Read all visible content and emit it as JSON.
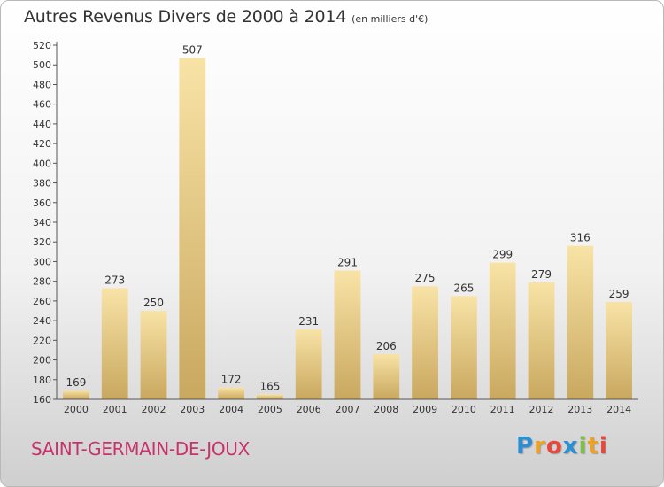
{
  "chart_data": {
    "type": "bar",
    "title": "Autres Revenus Divers de 2000 à 2014",
    "subtitle": "(en milliers d'€)",
    "categories": [
      "2000",
      "2001",
      "2002",
      "2003",
      "2004",
      "2005",
      "2006",
      "2007",
      "2008",
      "2009",
      "2010",
      "2011",
      "2012",
      "2013",
      "2014"
    ],
    "values": [
      169,
      273,
      250,
      507,
      172,
      165,
      231,
      291,
      206,
      275,
      265,
      299,
      279,
      316,
      259
    ],
    "ylim": [
      160,
      520
    ],
    "yticks": [
      160,
      180,
      200,
      220,
      240,
      260,
      280,
      300,
      320,
      340,
      360,
      380,
      400,
      420,
      440,
      460,
      480,
      500,
      520
    ],
    "grid": false,
    "data_labels": true,
    "bar_color": "#e0c37a"
  },
  "place_name": "SAINT-GERMAIN-DE-JOUX",
  "logo": {
    "letters": [
      "P",
      "r",
      "o",
      "x",
      "i",
      "t",
      "i"
    ],
    "colors": [
      "#2b8fd6",
      "#f0a020",
      "#e8483b",
      "#2b8fd6",
      "#7cc242",
      "#f0a020",
      "#e8483b"
    ]
  }
}
